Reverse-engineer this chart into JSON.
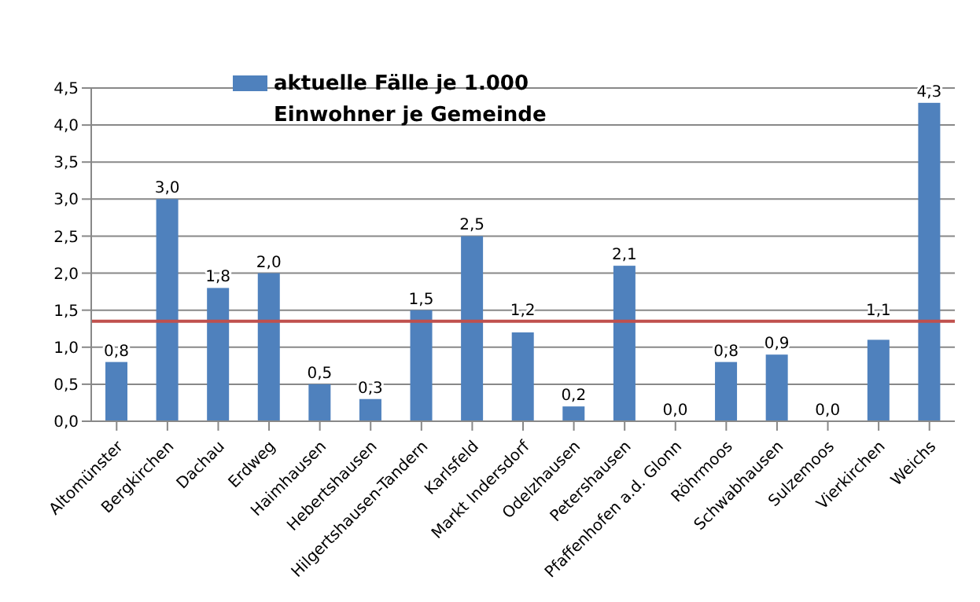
{
  "chart_data": {
    "type": "bar",
    "categories": [
      "Altomünster",
      "Bergkirchen",
      "Dachau",
      "Erdweg",
      "Haimhausen",
      "Hebertshausen",
      "Hilgertshausen-Tandern",
      "Karlsfeld",
      "Markt Indersdorf",
      "Odelzhausen",
      "Petershausen",
      "Pfaffenhofen a.d. Glonn",
      "Röhrmoos",
      "Schwabhausen",
      "Sulzemoos",
      "Vierkirchen",
      "Weichs"
    ],
    "series": [
      {
        "name": "aktuelle Fälle je 1.000 Einwohner je Gemeinde",
        "color": "#4f81bd",
        "values": [
          0.8,
          3.0,
          1.8,
          2.0,
          0.5,
          0.3,
          1.5,
          2.5,
          1.2,
          0.2,
          2.1,
          0.0,
          0.8,
          0.9,
          0.0,
          1.1,
          4.3
        ],
        "value_labels": [
          "0,8",
          "3,0",
          "1,8",
          "2,0",
          "0,5",
          "0,3",
          "1,5",
          "2,5",
          "1,2",
          "0,2",
          "2,1",
          "0,0",
          "0,8",
          "0,9",
          "0,0",
          "1,1",
          "4,3"
        ]
      }
    ],
    "ylim": [
      0,
      4.5
    ],
    "yticks": [
      {
        "value": 0,
        "label": "0,0"
      },
      {
        "value": 0.5,
        "label": "0,5"
      },
      {
        "value": 1,
        "label": "1,0"
      },
      {
        "value": 1.5,
        "label": "1,5"
      },
      {
        "value": 2,
        "label": "2,0"
      },
      {
        "value": 2.5,
        "label": "2,5"
      },
      {
        "value": 3,
        "label": "3,0"
      },
      {
        "value": 3.5,
        "label": "3,5"
      },
      {
        "value": 4,
        "label": "4,0"
      },
      {
        "value": 4.5,
        "label": "4,5"
      }
    ],
    "grid": "y",
    "legend": "top",
    "ref_lines": [
      {
        "axis": "y",
        "value": 1.35,
        "color": "#c0504d"
      }
    ]
  }
}
